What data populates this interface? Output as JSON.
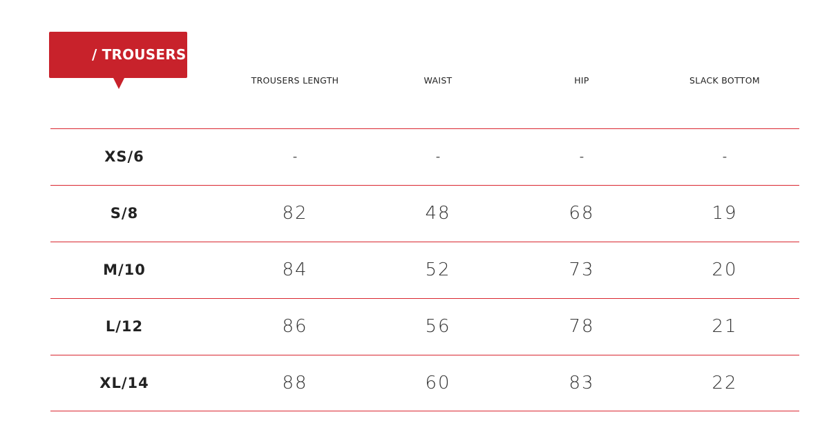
{
  "badge": {
    "title": "/ TROUSERS",
    "color": "#c8222b"
  },
  "columns": [
    "TROUSERS LENGTH",
    "WAIST",
    "HIP",
    "SLACK BOTTOM"
  ],
  "rows": [
    {
      "size": "XS/6",
      "values": [
        "-",
        "-",
        "-",
        "-"
      ]
    },
    {
      "size": "S/8",
      "values": [
        "82",
        "48",
        "68",
        "19"
      ]
    },
    {
      "size": "M/10",
      "values": [
        "84",
        "52",
        "73",
        "20"
      ]
    },
    {
      "size": "L/12",
      "values": [
        "86",
        "56",
        "78",
        "21"
      ]
    },
    {
      "size": "XL/14",
      "values": [
        "88",
        "60",
        "83",
        "22"
      ]
    }
  ],
  "divider_color": "#d9252e"
}
